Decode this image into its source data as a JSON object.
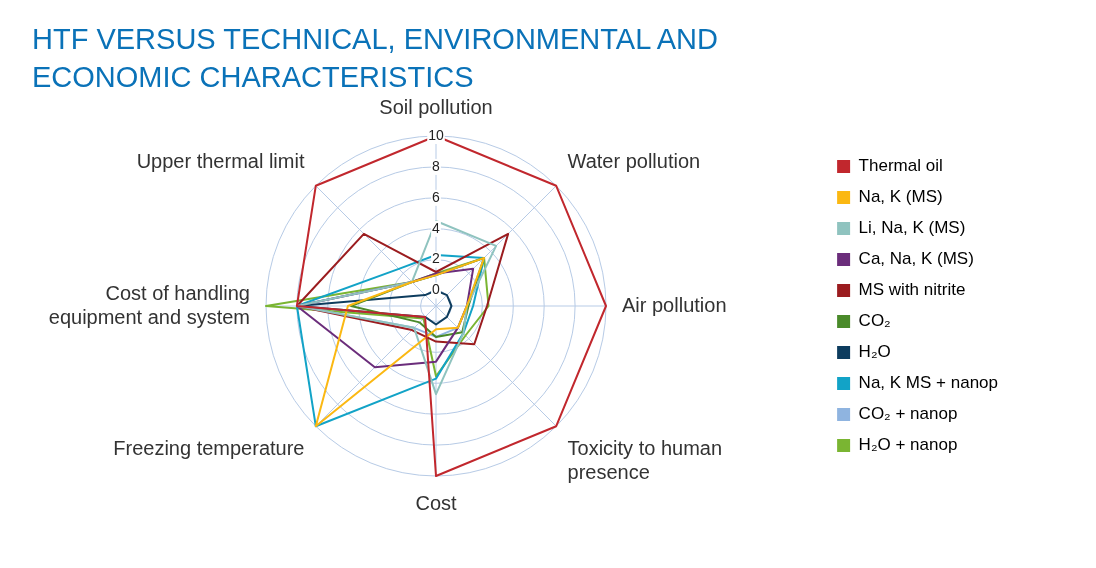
{
  "chart_data": {
    "type": "radar",
    "title": "HTF VERSUS TECHNICAL, ENVIRONMENTAL AND ECONOMIC CHARACTERISTICS",
    "categories": [
      "Soil pollution",
      "Water pollution",
      "Air pollution",
      "Toxicity to human presence",
      "Cost",
      "Freezing temperature",
      "Cost of handling equipment and system",
      "Upper thermal limit"
    ],
    "ylim": [
      -1,
      10
    ],
    "yticks": [
      0,
      2,
      4,
      6,
      8,
      10
    ],
    "grid": true,
    "legend": "right",
    "marker": "none",
    "series": [
      {
        "name": "Thermal oil",
        "color": "#c1272d",
        "values": [
          10,
          10,
          10,
          10,
          10,
          0,
          8,
          10
        ]
      },
      {
        "name": "Na, K (MS)",
        "color": "#fbb812",
        "values": [
          1,
          3.4,
          1,
          1,
          0.5,
          10,
          4.7,
          1.2
        ]
      },
      {
        "name": "Li, Na, K (MS)",
        "color": "#8fc3bf",
        "values": [
          4.5,
          4.5,
          1,
          1.5,
          4.7,
          1,
          8,
          1.2
        ]
      },
      {
        "name": "Ca, Na, K (MS)",
        "color": "#6b2d7b",
        "values": [
          1.1,
          2.4,
          1,
          1,
          2.6,
          4.6,
          8,
          1.2
        ]
      },
      {
        "name": "MS with nitrite",
        "color": "#9b1c1f",
        "values": [
          1.2,
          5.6,
          2.3,
          2.5,
          1.3,
          1.2,
          8,
          5.6
        ]
      },
      {
        "name": "CO₂",
        "color": "#4a8a2a",
        "values": [
          1,
          3.4,
          1.1,
          1.4,
          1,
          0.5,
          4.5,
          1.2
        ]
      },
      {
        "name": "H₂O",
        "color": "#0d3c5e",
        "values": [
          0,
          0,
          0,
          0,
          0.2,
          0,
          8,
          0
        ]
      },
      {
        "name": "Na, K MS + nanop",
        "color": "#12a3c7",
        "values": [
          2.3,
          3.4,
          1.4,
          1.5,
          3.7,
          10,
          8,
          2.4
        ]
      },
      {
        "name": "CO₂ + nanop",
        "color": "#8fb4e0",
        "values": [
          1,
          3.4,
          1,
          1,
          1,
          1,
          8,
          1.2
        ]
      },
      {
        "name": "H₂O + nanop",
        "color": "#7ab532",
        "values": [
          1.1,
          3.4,
          2.4,
          1.7,
          3.55,
          0.15,
          10,
          1.2
        ]
      }
    ]
  }
}
